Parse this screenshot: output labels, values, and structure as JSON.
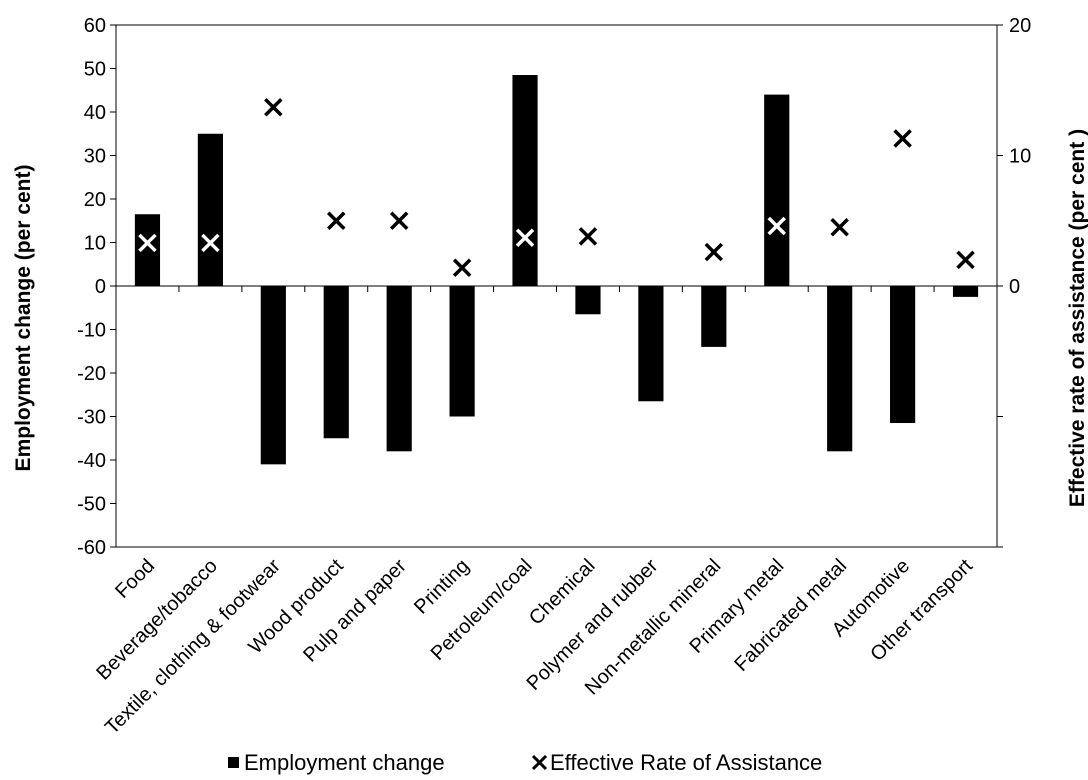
{
  "chart_data": {
    "type": "bar",
    "categories": [
      "Food",
      "Beverage/tobacco",
      "Textile, clothing & footwear",
      "Wood product",
      "Pulp and paper",
      "Printing",
      "Petroleum/coal",
      "Chemical",
      "Polymer and rubber",
      "Non-metallic mineral",
      "Primary metal",
      "Fabricated metal",
      "Automotive",
      "Other transport"
    ],
    "series": [
      {
        "name": "Employment change",
        "kind": "bar",
        "axis": "left",
        "color": "#000000",
        "values": [
          16.5,
          35,
          -41,
          -35,
          -38,
          -30,
          48.5,
          -6.5,
          -26.5,
          -14,
          44,
          -38,
          -31.5,
          -2.5
        ]
      },
      {
        "name": "Effective Rate of Assistance",
        "kind": "marker-x",
        "axis": "right",
        "color": "#000000",
        "values": [
          3.3,
          3.3,
          13.7,
          5,
          5,
          1.4,
          3.7,
          3.8,
          null,
          2.6,
          4.6,
          4.5,
          11.3,
          2
        ]
      }
    ],
    "ylabel": "Employment change (per cent)",
    "y2label": "Effective rate of assistance (per cent )",
    "ylim": [
      -60,
      60
    ],
    "yticks": [
      60,
      50,
      40,
      30,
      20,
      10,
      0,
      -10,
      -20,
      -30,
      -40,
      -50,
      -60
    ],
    "y2lim": [
      -20,
      20
    ],
    "y2ticks": [
      20,
      10,
      0
    ],
    "grid": false,
    "legend_position": "bottom"
  }
}
